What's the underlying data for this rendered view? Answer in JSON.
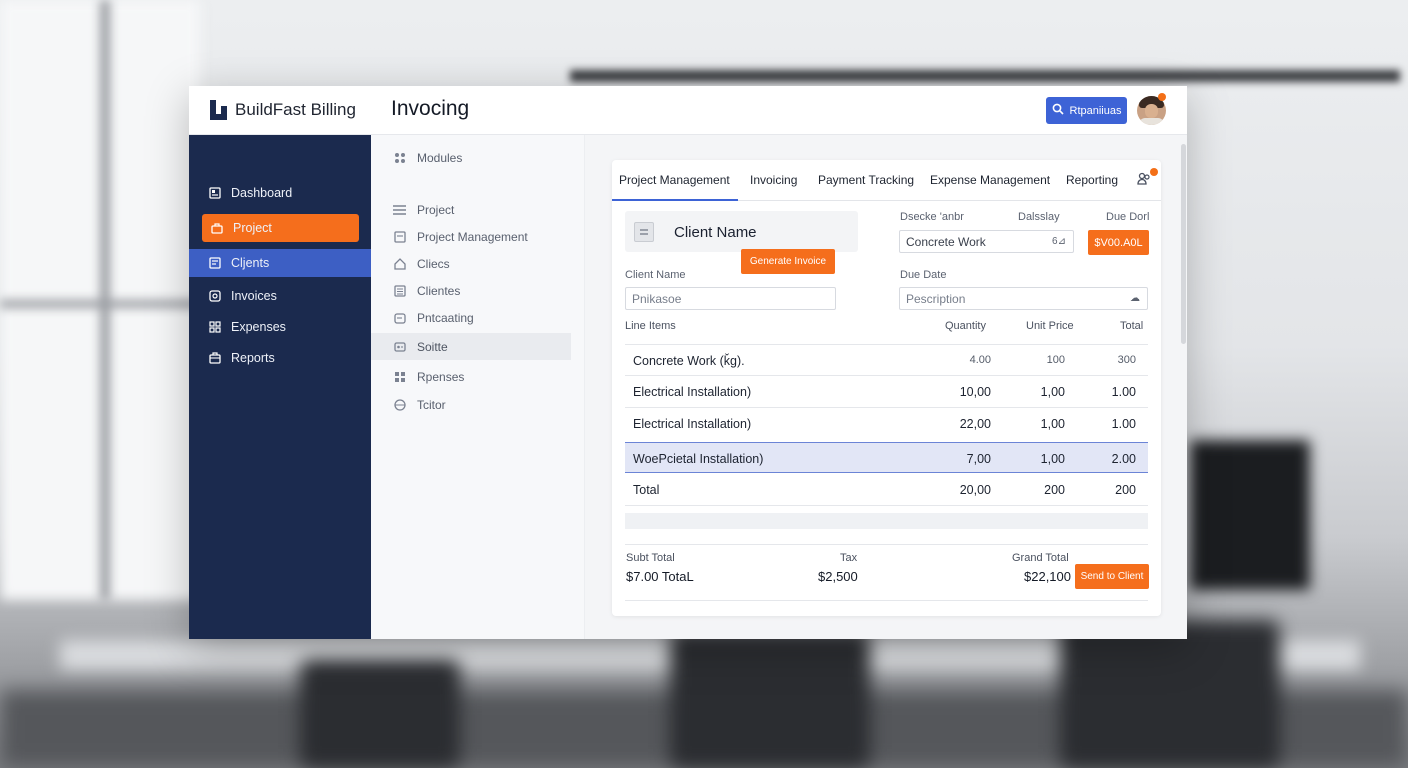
{
  "app": {
    "brand": "BuildFast Billing",
    "page_title": "Invocing"
  },
  "header": {
    "search_label": "Rtpaniiuas"
  },
  "sidebar": {
    "items": [
      {
        "label": "Dashboard",
        "icon": "dashboard-icon"
      },
      {
        "label": "Project",
        "icon": "project-icon",
        "state": "active-orange"
      },
      {
        "label": "Cljents",
        "icon": "clients-icon",
        "state": "active-blue"
      },
      {
        "label": "Invoices",
        "icon": "invoice-icon"
      },
      {
        "label": "Expenses",
        "icon": "expenses-icon"
      },
      {
        "label": "Reports",
        "icon": "reports-icon"
      }
    ]
  },
  "modules": {
    "heading": "Modules",
    "items": [
      {
        "label": "Project"
      },
      {
        "label": "Project Management"
      },
      {
        "label": "Cliecs"
      },
      {
        "label": "Clientes"
      },
      {
        "label": "Pntcaating"
      },
      {
        "label": "Soitte",
        "selected": true
      },
      {
        "label": "Rpenses"
      },
      {
        "label": "Tcitor"
      }
    ]
  },
  "tabs": [
    "Project Management",
    "Invoicing",
    "Payment Tracking",
    "Expense Management",
    "Reporting"
  ],
  "invoice": {
    "client_title": "Client Name",
    "generate_label": "Generate Invoice",
    "client_name_label": "Client Name",
    "client_name_value": "Pnikasoe",
    "col_labels": [
      "Dsecke 'anbr",
      "Dalsslay",
      "Due Dorl"
    ],
    "description_value": "Concrete Work",
    "description_trail": "6⊿",
    "due_amount": "$V00.A0L",
    "due_date_label": "Due Date",
    "description_placeholder": "Pescription",
    "line_items_label": "Line Items",
    "headers": {
      "quantity": "Quantity",
      "unit_price": "Unit Price",
      "total": "Total"
    },
    "rows": [
      {
        "desc": "Concrete Work (ǩg).",
        "qty": "4.00",
        "unit": "100",
        "total": "300"
      },
      {
        "desc": "Electrical Installation)",
        "qty": "10,00",
        "unit": "1,00",
        "total": "1.00"
      },
      {
        "desc": "Electrical Installation)",
        "qty": "22,00",
        "unit": "1,00",
        "total": "1.00"
      },
      {
        "desc": "WoePcietal Installation)",
        "qty": "7,00",
        "unit": "1,00",
        "total": "2.00"
      },
      {
        "desc": "Total",
        "qty": "20,00",
        "unit": "200",
        "total": "200"
      }
    ],
    "subtotal_label": "Subt Total",
    "subtotal_value": "$7.00 TotaL",
    "tax_label": "Tax",
    "tax_value": "$2,500",
    "grand_total_label": "Grand Total",
    "grand_total_value": "$22,100",
    "send_label": "Send to Client"
  },
  "colors": {
    "accent_orange": "#f56e1c",
    "accent_blue": "#3d63d6",
    "sidebar_bg": "#1b2a4e"
  }
}
